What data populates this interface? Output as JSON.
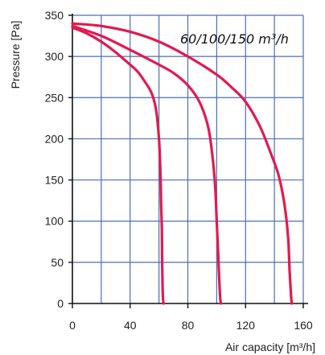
{
  "chart_data": {
    "type": "line",
    "title": "",
    "annotation": "60/100/150 m³/h",
    "xlabel": "Air capacity [m³/h]",
    "ylabel": "Pressure [Pa]",
    "xlim": [
      0,
      160
    ],
    "ylim": [
      0,
      350
    ],
    "x_ticks": [
      0,
      40,
      80,
      120,
      160
    ],
    "y_ticks": [
      0,
      50,
      100,
      150,
      200,
      250,
      300,
      350
    ],
    "x_grid_step": 20,
    "y_grid_step": 50,
    "grid": true,
    "line_color": "#e21a4f",
    "grid_color": "#4a6fb5",
    "series": [
      {
        "x": [
          0,
          10,
          20,
          30,
          40,
          45,
          50,
          55,
          58,
          60,
          61,
          61.5,
          62,
          62.2,
          62.5,
          62.8,
          63.2
        ],
        "y": [
          335,
          328,
          318,
          305,
          290,
          282,
          270,
          255,
          235,
          200,
          160,
          120,
          90,
          50,
          20,
          5,
          0
        ]
      },
      {
        "x": [
          0,
          20,
          40,
          60,
          70,
          80,
          88,
          94,
          97,
          99,
          100,
          100.8,
          101.5,
          102,
          102.5,
          103
        ],
        "y": [
          337,
          325,
          308,
          290,
          280,
          265,
          245,
          215,
          180,
          140,
          100,
          70,
          40,
          20,
          5,
          0
        ]
      },
      {
        "x": [
          0,
          20,
          40,
          60,
          80,
          100,
          110,
          120,
          130,
          138,
          143,
          147,
          149.5,
          150.5,
          151.5,
          152
        ],
        "y": [
          340,
          337,
          330,
          318,
          300,
          278,
          263,
          245,
          215,
          180,
          155,
          120,
          80,
          40,
          10,
          0
        ]
      }
    ]
  }
}
